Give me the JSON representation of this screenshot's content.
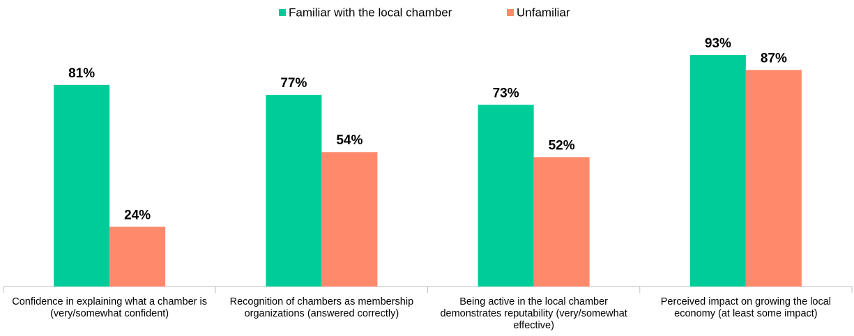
{
  "chart_data": {
    "type": "bar",
    "categories": [
      "Confidence in explaining what a chamber is (very/somewhat confident)",
      "Recognition of chambers as membership organizations (answered correctly)",
      "Being active in the local chamber demonstrates reputability (very/somewhat effective)",
      "Perceived impact on growing the local economy (at least some impact)"
    ],
    "series": [
      {
        "name": "Familiar with the local chamber",
        "color": "#00cc99",
        "values": [
          81,
          77,
          73,
          93
        ],
        "value_labels": [
          "81%",
          "77%",
          "73%",
          "93%"
        ]
      },
      {
        "name": "Unfamiliar",
        "color": "#ff8a6b",
        "values": [
          24,
          54,
          52,
          87
        ],
        "value_labels": [
          "24%",
          "54%",
          "52%",
          "87%"
        ]
      }
    ],
    "legend": "top"
  }
}
